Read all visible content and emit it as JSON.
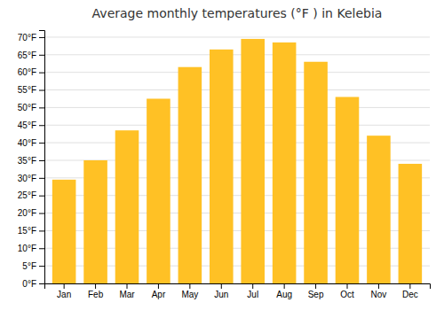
{
  "chart_data": {
    "type": "bar",
    "title": "Average monthly temperatures (°F ) in Kelebia",
    "categories": [
      "Jan",
      "Feb",
      "Mar",
      "Apr",
      "May",
      "Jun",
      "Jul",
      "Aug",
      "Sep",
      "Oct",
      "Nov",
      "Dec"
    ],
    "values": [
      29.5,
      35.0,
      43.5,
      52.5,
      61.5,
      66.5,
      69.5,
      68.5,
      63.0,
      53.0,
      42.0,
      34.0
    ],
    "color": "#FFC125",
    "ylim": [
      0,
      72
    ],
    "yticks": [
      {
        "value": 0,
        "label": "0°F"
      },
      {
        "value": 5,
        "label": "5°F"
      },
      {
        "value": 10,
        "label": "10°F"
      },
      {
        "value": 15,
        "label": "15°F"
      },
      {
        "value": 20,
        "label": "20°F"
      },
      {
        "value": 25,
        "label": "25°F"
      },
      {
        "value": 30,
        "label": "30°F"
      },
      {
        "value": 35,
        "label": "35°F"
      },
      {
        "value": 40,
        "label": "40°F"
      },
      {
        "value": 45,
        "label": "45°F"
      },
      {
        "value": 50,
        "label": "50°F"
      },
      {
        "value": 55,
        "label": "55°F"
      },
      {
        "value": 60,
        "label": "60°F"
      },
      {
        "value": 65,
        "label": "65°F"
      },
      {
        "value": 70,
        "label": "70°F"
      }
    ],
    "grid": true
  }
}
